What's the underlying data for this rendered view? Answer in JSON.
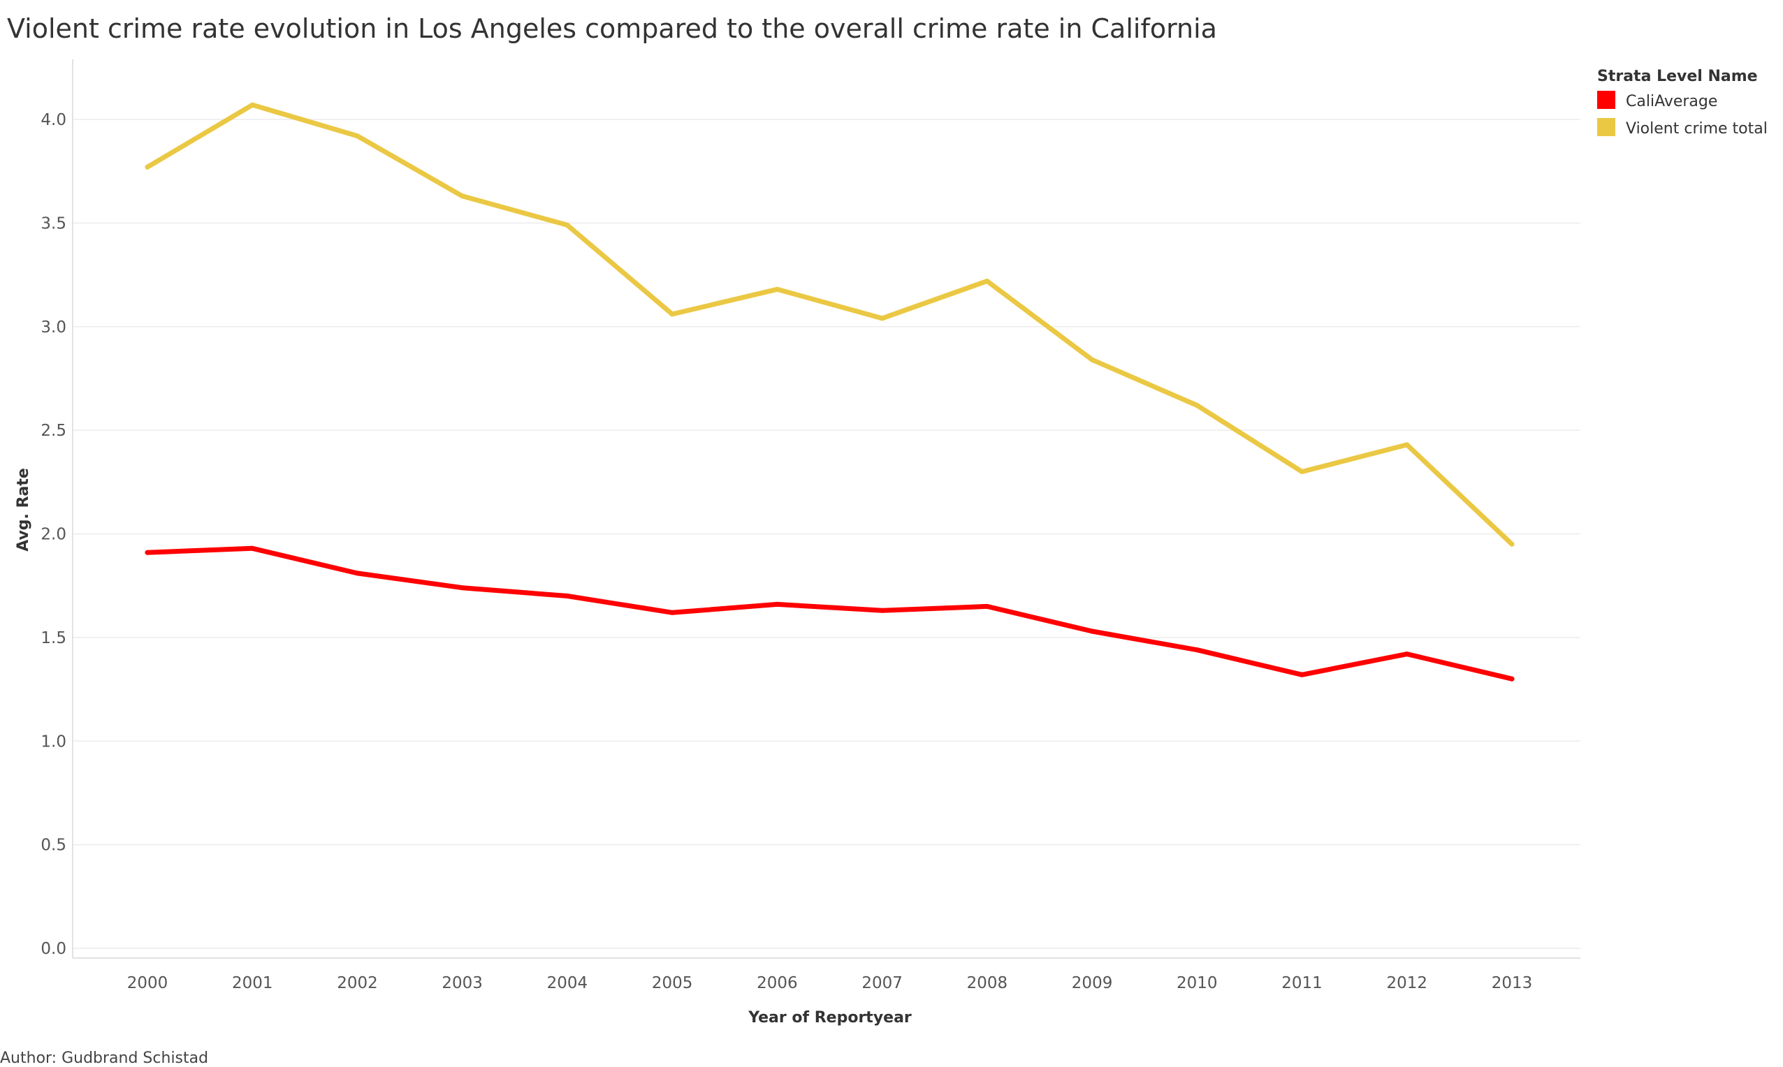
{
  "author_note": "Author: Gudbrand Schistad",
  "chart_data": {
    "type": "line",
    "title": "Violent crime rate evolution in Los Angeles compared to the overall crime rate in California",
    "xlabel": "Year of Reportyear",
    "ylabel": "Avg. Rate",
    "x": [
      "2000",
      "2001",
      "2002",
      "2003",
      "2004",
      "2005",
      "2006",
      "2007",
      "2008",
      "2009",
      "2010",
      "2011",
      "2012",
      "2013"
    ],
    "yticks": [
      "0.0",
      "0.5",
      "1.0",
      "1.5",
      "2.0",
      "2.5",
      "3.0",
      "3.5",
      "4.0"
    ],
    "ylim": [
      0,
      4.25
    ],
    "grid": true,
    "legend": {
      "title": "Strata Level Name",
      "position": "top-right"
    },
    "series": [
      {
        "name": "CaliAverage",
        "color": "#ff0000",
        "values": [
          1.91,
          1.93,
          1.81,
          1.74,
          1.7,
          1.62,
          1.66,
          1.63,
          1.65,
          1.53,
          1.44,
          1.32,
          1.42,
          1.3
        ]
      },
      {
        "name": "Violent crime total",
        "color": "#ebc844",
        "values": [
          3.77,
          4.07,
          3.92,
          3.63,
          3.49,
          3.06,
          3.18,
          3.04,
          3.22,
          2.84,
          2.62,
          2.3,
          2.43,
          1.95
        ]
      }
    ]
  }
}
